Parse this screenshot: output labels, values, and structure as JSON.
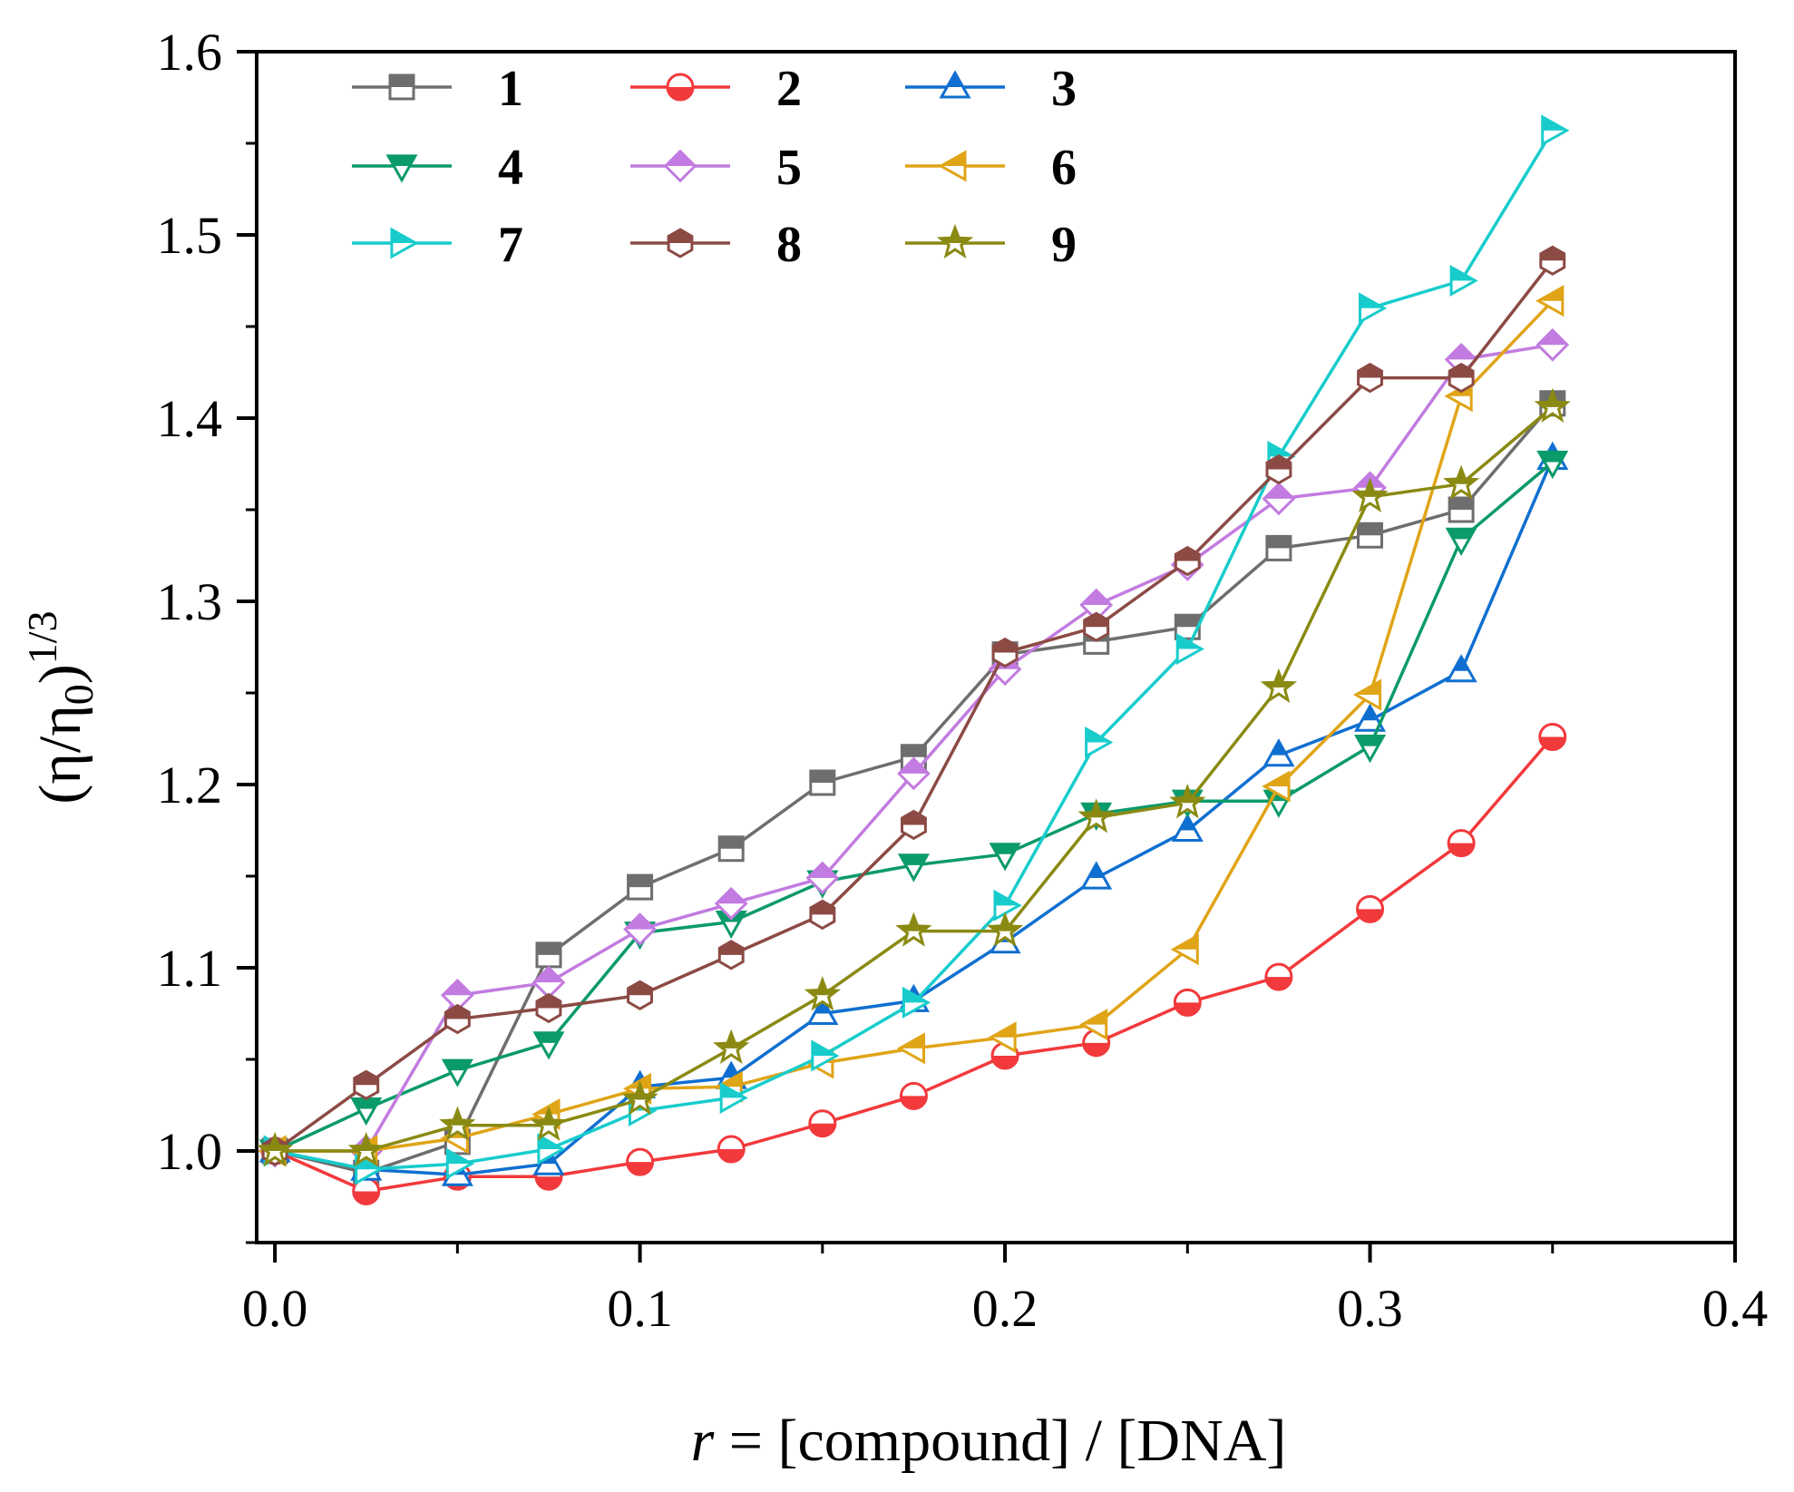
{
  "chart_data": {
    "type": "line",
    "title": "",
    "xlabel": {
      "italic": "r",
      "rest": " = [compound] / [DNA]"
    },
    "ylabel": {
      "open": "(η/η",
      "sub": "0",
      "close": ")",
      "sup": "1/3"
    },
    "xlim": [
      -0.005,
      0.4
    ],
    "ylim": [
      0.95,
      1.6
    ],
    "xticks": [
      "0.0",
      "0.1",
      "0.2",
      "0.3",
      "0.4"
    ],
    "yticks": [
      "1.0",
      "1.1",
      "1.2",
      "1.3",
      "1.4",
      "1.5",
      "1.6"
    ],
    "grid": false,
    "legend_placement": "top-left",
    "x": [
      0,
      0.025,
      0.05,
      0.075,
      0.1,
      0.125,
      0.15,
      0.175,
      0.2,
      0.225,
      0.25,
      0.275,
      0.3,
      0.325,
      0.35
    ],
    "series": [
      {
        "name": "1",
        "color": "#6e6e6e",
        "marker": "square",
        "fill": "top",
        "values": [
          1.0,
          0.988,
          1.005,
          1.107,
          1.144,
          1.165,
          1.201,
          1.215,
          1.271,
          1.278,
          1.286,
          1.329,
          1.336,
          1.35,
          1.408
        ]
      },
      {
        "name": "2",
        "color": "#f2393c",
        "marker": "circle",
        "fill": "bottom",
        "values": [
          1.0,
          0.978,
          0.986,
          0.986,
          0.994,
          1.001,
          1.015,
          1.03,
          1.052,
          1.059,
          1.081,
          1.095,
          1.132,
          1.168,
          1.226
        ]
      },
      {
        "name": "3",
        "color": "#0f6fd0",
        "marker": "triangle-up",
        "fill": "top",
        "values": [
          1.0,
          0.99,
          0.987,
          0.993,
          1.035,
          1.04,
          1.075,
          1.082,
          1.114,
          1.149,
          1.175,
          1.216,
          1.235,
          1.262,
          1.378
        ]
      },
      {
        "name": "4",
        "color": "#0b9a6a",
        "marker": "triangle-down",
        "fill": "top",
        "values": [
          1.0,
          1.023,
          1.044,
          1.059,
          1.119,
          1.125,
          1.147,
          1.156,
          1.162,
          1.184,
          1.191,
          1.191,
          1.221,
          1.334,
          1.376
        ]
      },
      {
        "name": "5",
        "color": "#c27be0",
        "marker": "diamond",
        "fill": "top",
        "values": [
          1.0,
          1.0,
          1.085,
          1.092,
          1.121,
          1.135,
          1.149,
          1.206,
          1.263,
          1.298,
          1.32,
          1.356,
          1.362,
          1.432,
          1.44
        ]
      },
      {
        "name": "6",
        "color": "#e0a417",
        "marker": "triangle-left",
        "fill": "top",
        "values": [
          1.0,
          1.0,
          1.007,
          1.02,
          1.034,
          1.035,
          1.048,
          1.056,
          1.062,
          1.069,
          1.11,
          1.199,
          1.249,
          1.412,
          1.464
        ]
      },
      {
        "name": "7",
        "color": "#18cccc",
        "marker": "triangle-right",
        "fill": "top",
        "values": [
          1.0,
          0.99,
          0.993,
          1.001,
          1.022,
          1.029,
          1.052,
          1.081,
          1.134,
          1.223,
          1.274,
          1.379,
          1.46,
          1.475,
          1.557
        ]
      },
      {
        "name": "8",
        "color": "#8c4a45",
        "marker": "hexagon",
        "fill": "top",
        "values": [
          1.0,
          1.036,
          1.072,
          1.078,
          1.085,
          1.107,
          1.129,
          1.178,
          1.272,
          1.286,
          1.322,
          1.372,
          1.422,
          1.422,
          1.486
        ]
      },
      {
        "name": "9",
        "color": "#8a8a13",
        "marker": "star",
        "fill": "top",
        "values": [
          1.0,
          1.0,
          1.014,
          1.014,
          1.028,
          1.056,
          1.085,
          1.12,
          1.12,
          1.182,
          1.19,
          1.253,
          1.357,
          1.364,
          1.406
        ]
      }
    ]
  }
}
